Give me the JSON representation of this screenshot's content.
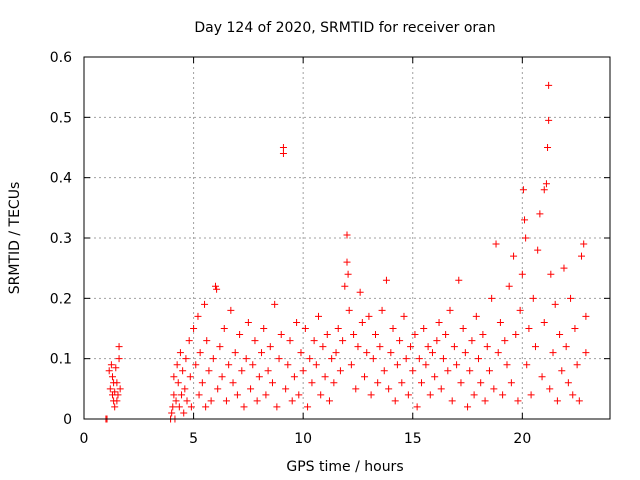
{
  "chart_data": {
    "type": "scatter",
    "title": "Day 124 of 2020, SRMTID for receiver oran",
    "xlabel": "GPS time / hours",
    "ylabel": "SRMTID / TECUs",
    "xlim": [
      0,
      24
    ],
    "ylim": [
      0,
      0.6
    ],
    "x_ticks": [
      0,
      5,
      10,
      15,
      20
    ],
    "y_ticks": [
      0,
      0.1,
      0.2,
      0.3,
      0.4,
      0.5,
      0.6
    ],
    "x_tick_labels": [
      "0",
      "5",
      "10",
      "15",
      "20"
    ],
    "y_tick_labels": [
      "0",
      "0.1",
      "0.2",
      "0.3",
      "0.4",
      "0.5",
      "0.6"
    ],
    "grid": true,
    "marker": "+",
    "color": "#ff0000",
    "series": [
      {
        "name": "SRMTID",
        "points": [
          [
            1.0,
            0.0
          ],
          [
            1.05,
            0.0
          ],
          [
            1.15,
            0.08
          ],
          [
            1.2,
            0.05
          ],
          [
            1.25,
            0.09
          ],
          [
            1.3,
            0.04
          ],
          [
            1.3,
            0.07
          ],
          [
            1.35,
            0.03
          ],
          [
            1.35,
            0.06
          ],
          [
            1.4,
            0.02
          ],
          [
            1.4,
            0.045
          ],
          [
            1.45,
            0.085
          ],
          [
            1.5,
            0.03
          ],
          [
            1.5,
            0.06
          ],
          [
            1.55,
            0.04
          ],
          [
            1.6,
            0.12
          ],
          [
            1.6,
            0.1
          ],
          [
            1.65,
            0.05
          ],
          [
            3.95,
            0.0
          ],
          [
            4.0,
            0.01
          ],
          [
            4.05,
            0.02
          ],
          [
            4.1,
            0.04
          ],
          [
            4.1,
            0.07
          ],
          [
            4.15,
            0.0
          ],
          [
            4.2,
            0.03
          ],
          [
            4.25,
            0.09
          ],
          [
            4.3,
            0.06
          ],
          [
            4.35,
            0.02
          ],
          [
            4.4,
            0.11
          ],
          [
            4.45,
            0.04
          ],
          [
            4.5,
            0.08
          ],
          [
            4.55,
            0.01
          ],
          [
            4.6,
            0.05
          ],
          [
            4.65,
            0.1
          ],
          [
            4.7,
            0.03
          ],
          [
            4.8,
            0.13
          ],
          [
            4.85,
            0.07
          ],
          [
            4.9,
            0.02
          ],
          [
            5.0,
            0.15
          ],
          [
            5.1,
            0.09
          ],
          [
            5.2,
            0.17
          ],
          [
            5.25,
            0.04
          ],
          [
            5.3,
            0.11
          ],
          [
            5.4,
            0.06
          ],
          [
            5.5,
            0.19
          ],
          [
            5.55,
            0.02
          ],
          [
            5.6,
            0.13
          ],
          [
            5.7,
            0.08
          ],
          [
            5.8,
            0.03
          ],
          [
            5.9,
            0.1
          ],
          [
            6.0,
            0.22
          ],
          [
            6.05,
            0.215
          ],
          [
            6.1,
            0.05
          ],
          [
            6.2,
            0.12
          ],
          [
            6.3,
            0.07
          ],
          [
            6.4,
            0.15
          ],
          [
            6.5,
            0.03
          ],
          [
            6.6,
            0.09
          ],
          [
            6.7,
            0.18
          ],
          [
            6.8,
            0.06
          ],
          [
            6.9,
            0.11
          ],
          [
            7.0,
            0.04
          ],
          [
            7.1,
            0.14
          ],
          [
            7.2,
            0.08
          ],
          [
            7.3,
            0.02
          ],
          [
            7.4,
            0.1
          ],
          [
            7.5,
            0.16
          ],
          [
            7.6,
            0.05
          ],
          [
            7.7,
            0.09
          ],
          [
            7.8,
            0.13
          ],
          [
            7.9,
            0.03
          ],
          [
            8.0,
            0.07
          ],
          [
            8.1,
            0.11
          ],
          [
            8.2,
            0.15
          ],
          [
            8.3,
            0.04
          ],
          [
            8.4,
            0.08
          ],
          [
            8.5,
            0.12
          ],
          [
            8.6,
            0.06
          ],
          [
            8.7,
            0.19
          ],
          [
            8.8,
            0.02
          ],
          [
            8.9,
            0.1
          ],
          [
            9.0,
            0.14
          ],
          [
            9.1,
            0.45
          ],
          [
            9.1,
            0.44
          ],
          [
            9.2,
            0.05
          ],
          [
            9.3,
            0.09
          ],
          [
            9.4,
            0.13
          ],
          [
            9.5,
            0.03
          ],
          [
            9.6,
            0.07
          ],
          [
            9.7,
            0.16
          ],
          [
            9.8,
            0.04
          ],
          [
            9.9,
            0.11
          ],
          [
            10.0,
            0.08
          ],
          [
            10.1,
            0.15
          ],
          [
            10.2,
            0.02
          ],
          [
            10.3,
            0.1
          ],
          [
            10.4,
            0.06
          ],
          [
            10.5,
            0.13
          ],
          [
            10.6,
            0.09
          ],
          [
            10.7,
            0.17
          ],
          [
            10.8,
            0.04
          ],
          [
            10.9,
            0.12
          ],
          [
            11.0,
            0.07
          ],
          [
            11.1,
            0.14
          ],
          [
            11.2,
            0.03
          ],
          [
            11.3,
            0.1
          ],
          [
            11.4,
            0.06
          ],
          [
            11.5,
            0.11
          ],
          [
            11.6,
            0.15
          ],
          [
            11.7,
            0.08
          ],
          [
            11.8,
            0.13
          ],
          [
            11.9,
            0.22
          ],
          [
            12.0,
            0.305
          ],
          [
            12.0,
            0.26
          ],
          [
            12.05,
            0.24
          ],
          [
            12.1,
            0.18
          ],
          [
            12.2,
            0.09
          ],
          [
            12.3,
            0.14
          ],
          [
            12.4,
            0.05
          ],
          [
            12.5,
            0.12
          ],
          [
            12.6,
            0.21
          ],
          [
            12.7,
            0.16
          ],
          [
            12.8,
            0.07
          ],
          [
            12.9,
            0.11
          ],
          [
            13.0,
            0.17
          ],
          [
            13.1,
            0.04
          ],
          [
            13.2,
            0.1
          ],
          [
            13.3,
            0.14
          ],
          [
            13.4,
            0.06
          ],
          [
            13.5,
            0.12
          ],
          [
            13.6,
            0.18
          ],
          [
            13.7,
            0.08
          ],
          [
            13.8,
            0.23
          ],
          [
            13.9,
            0.05
          ],
          [
            14.0,
            0.11
          ],
          [
            14.1,
            0.15
          ],
          [
            14.2,
            0.03
          ],
          [
            14.3,
            0.09
          ],
          [
            14.4,
            0.13
          ],
          [
            14.5,
            0.06
          ],
          [
            14.6,
            0.17
          ],
          [
            14.7,
            0.1
          ],
          [
            14.8,
            0.04
          ],
          [
            14.9,
            0.12
          ],
          [
            15.0,
            0.08
          ],
          [
            15.1,
            0.14
          ],
          [
            15.2,
            0.02
          ],
          [
            15.3,
            0.1
          ],
          [
            15.4,
            0.06
          ],
          [
            15.5,
            0.15
          ],
          [
            15.6,
            0.09
          ],
          [
            15.7,
            0.12
          ],
          [
            15.8,
            0.04
          ],
          [
            15.9,
            0.11
          ],
          [
            16.0,
            0.07
          ],
          [
            16.1,
            0.13
          ],
          [
            16.2,
            0.16
          ],
          [
            16.3,
            0.05
          ],
          [
            16.4,
            0.1
          ],
          [
            16.5,
            0.14
          ],
          [
            16.6,
            0.08
          ],
          [
            16.7,
            0.18
          ],
          [
            16.8,
            0.03
          ],
          [
            16.9,
            0.12
          ],
          [
            17.0,
            0.09
          ],
          [
            17.1,
            0.23
          ],
          [
            17.2,
            0.06
          ],
          [
            17.3,
            0.15
          ],
          [
            17.4,
            0.11
          ],
          [
            17.5,
            0.02
          ],
          [
            17.6,
            0.08
          ],
          [
            17.7,
            0.13
          ],
          [
            17.8,
            0.04
          ],
          [
            17.9,
            0.17
          ],
          [
            18.0,
            0.1
          ],
          [
            18.1,
            0.06
          ],
          [
            18.2,
            0.14
          ],
          [
            18.3,
            0.03
          ],
          [
            18.4,
            0.12
          ],
          [
            18.5,
            0.08
          ],
          [
            18.6,
            0.2
          ],
          [
            18.7,
            0.05
          ],
          [
            18.8,
            0.29
          ],
          [
            18.9,
            0.11
          ],
          [
            19.0,
            0.16
          ],
          [
            19.1,
            0.04
          ],
          [
            19.2,
            0.13
          ],
          [
            19.3,
            0.09
          ],
          [
            19.4,
            0.22
          ],
          [
            19.5,
            0.06
          ],
          [
            19.6,
            0.27
          ],
          [
            19.7,
            0.14
          ],
          [
            19.8,
            0.03
          ],
          [
            19.9,
            0.18
          ],
          [
            20.0,
            0.24
          ],
          [
            20.05,
            0.38
          ],
          [
            20.1,
            0.33
          ],
          [
            20.15,
            0.3
          ],
          [
            20.2,
            0.09
          ],
          [
            20.3,
            0.15
          ],
          [
            20.4,
            0.04
          ],
          [
            20.5,
            0.2
          ],
          [
            20.6,
            0.12
          ],
          [
            20.7,
            0.28
          ],
          [
            20.8,
            0.34
          ],
          [
            20.9,
            0.07
          ],
          [
            21.0,
            0.38
          ],
          [
            21.0,
            0.16
          ],
          [
            21.1,
            0.39
          ],
          [
            21.15,
            0.45
          ],
          [
            21.2,
            0.495
          ],
          [
            21.2,
            0.553
          ],
          [
            21.25,
            0.05
          ],
          [
            21.3,
            0.24
          ],
          [
            21.4,
            0.11
          ],
          [
            21.5,
            0.19
          ],
          [
            21.6,
            0.03
          ],
          [
            21.7,
            0.14
          ],
          [
            21.8,
            0.08
          ],
          [
            21.9,
            0.25
          ],
          [
            22.0,
            0.12
          ],
          [
            22.1,
            0.06
          ],
          [
            22.2,
            0.2
          ],
          [
            22.3,
            0.04
          ],
          [
            22.4,
            0.15
          ],
          [
            22.5,
            0.09
          ],
          [
            22.6,
            0.03
          ],
          [
            22.7,
            0.27
          ],
          [
            22.8,
            0.29
          ],
          [
            22.9,
            0.17
          ],
          [
            22.9,
            0.11
          ]
        ]
      }
    ]
  }
}
